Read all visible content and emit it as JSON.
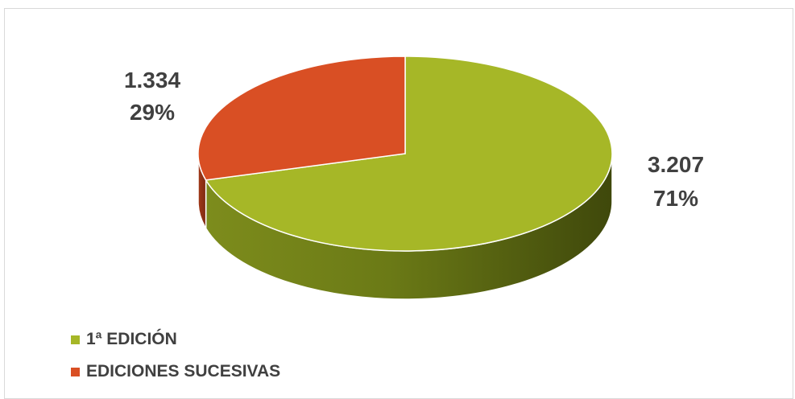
{
  "chart_data": {
    "type": "pie",
    "categories": [
      "1ª EDICIÓN",
      "EDICIONES SUCESIVAS"
    ],
    "values": [
      3207,
      1334
    ],
    "value_labels": [
      "3.207",
      "1.334"
    ],
    "percent_labels": [
      "71%",
      "29%"
    ],
    "colors": [
      "#a6b727",
      "#d94f24"
    ],
    "side_colors": [
      "#6b7a16",
      "#9a3418"
    ],
    "legend_placement": "bottom-left",
    "style": "3d"
  }
}
